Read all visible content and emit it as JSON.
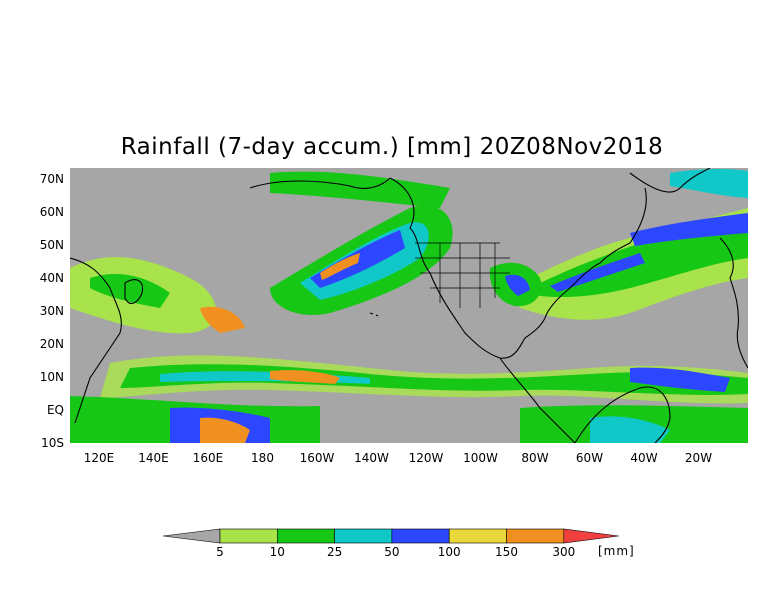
{
  "title": "Rainfall (7-day accum.) [mm] 20Z08Nov2018",
  "y_axis_labels": [
    "70N",
    "60N",
    "50N",
    "40N",
    "30N",
    "20N",
    "10N",
    "EQ",
    "10S"
  ],
  "x_axis_labels": [
    "120E",
    "140E",
    "160E",
    "180",
    "160W",
    "140W",
    "120W",
    "100W",
    "80W",
    "60W",
    "40W",
    "20W"
  ],
  "legend": {
    "levels": [
      "5",
      "10",
      "25",
      "50",
      "100",
      "150",
      "300"
    ],
    "unit": "[mm]",
    "colors": [
      "#a9e34b",
      "#16c716",
      "#10c8c8",
      "#2d46ff",
      "#e8d83a",
      "#f09020",
      "#f04040"
    ],
    "below_color": "#a6a6a6"
  },
  "map": {
    "ocean_color": "#a6a6a6",
    "coast_color": "#000000"
  }
}
